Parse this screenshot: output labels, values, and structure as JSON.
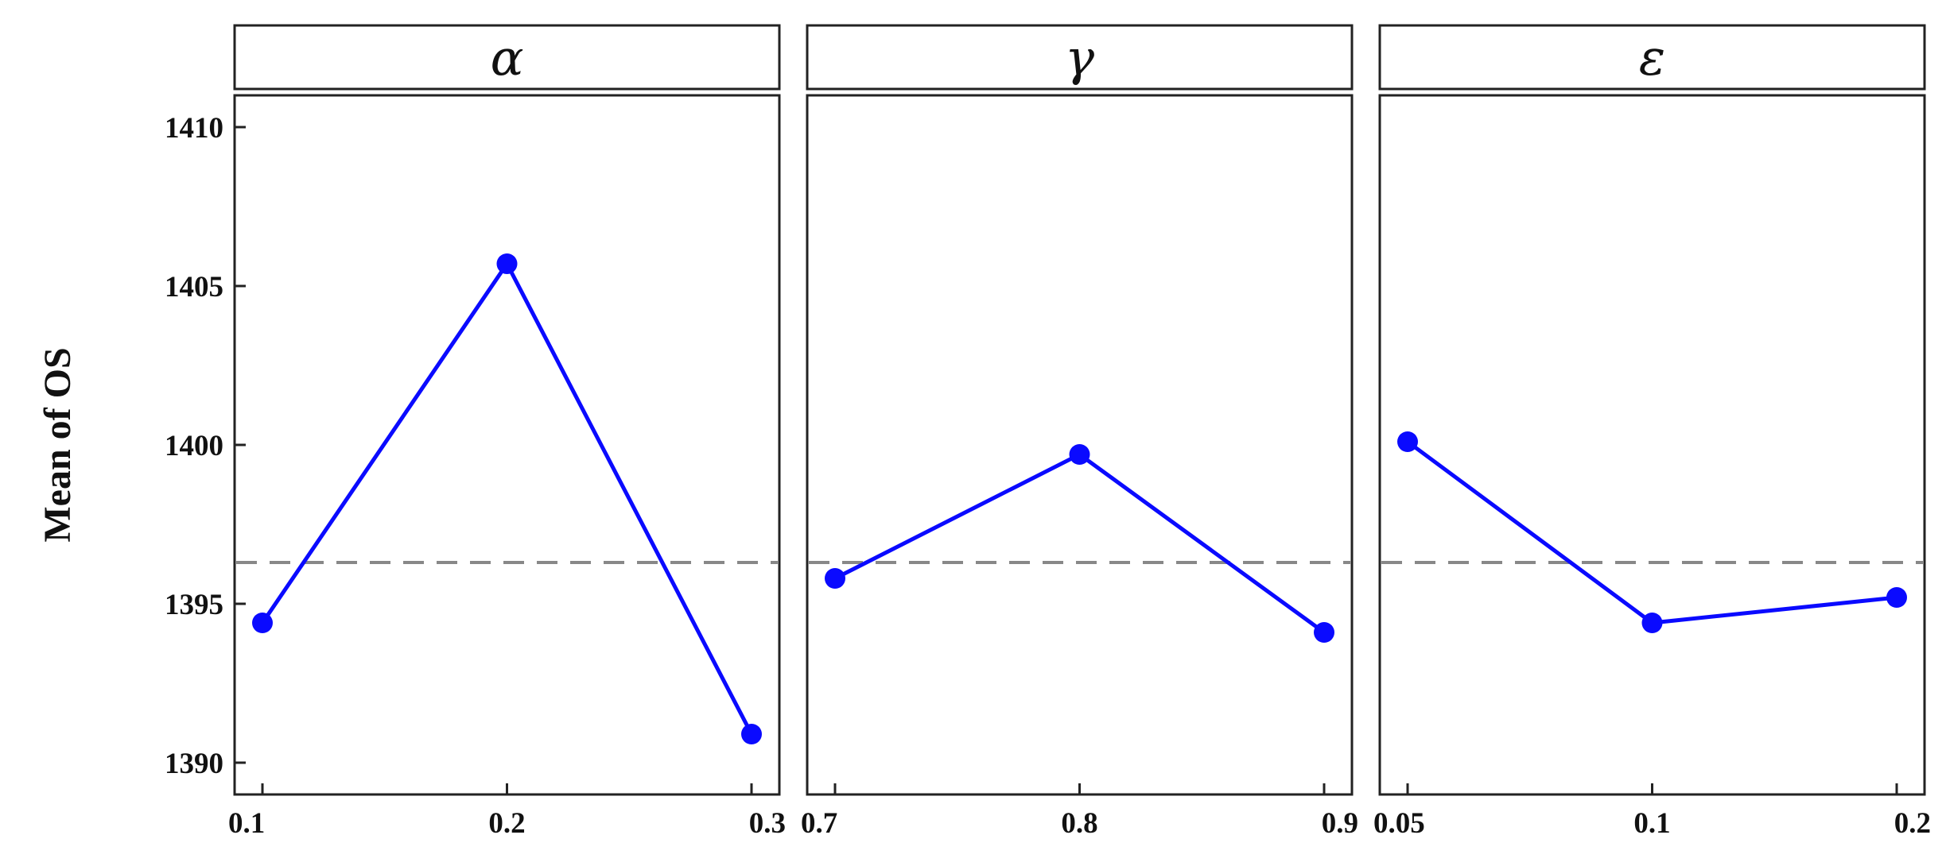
{
  "chart_data": {
    "type": "line",
    "ylabel": "Mean of OS",
    "ylim": [
      1389,
      1411
    ],
    "yticks": [
      1390,
      1395,
      1400,
      1405,
      1410
    ],
    "ytick_labels": [
      "1390",
      "1395",
      "1400",
      "1405",
      "1410"
    ],
    "reference_line": 1396.3,
    "panels": [
      {
        "title": "α",
        "categories": [
          "0.1",
          "0.2",
          "0.3"
        ],
        "values": [
          1394.4,
          1405.7,
          1390.9
        ]
      },
      {
        "title": "γ",
        "categories": [
          "0.7",
          "0.8",
          "0.9"
        ],
        "values": [
          1395.8,
          1399.7,
          1394.1
        ]
      },
      {
        "title": "ε",
        "categories": [
          "0.05",
          "0.1",
          "0.2"
        ],
        "values": [
          1400.1,
          1394.4,
          1395.2
        ]
      }
    ],
    "colors": {
      "series": "#0a0aff",
      "reference": "#888888"
    },
    "grid": false
  }
}
